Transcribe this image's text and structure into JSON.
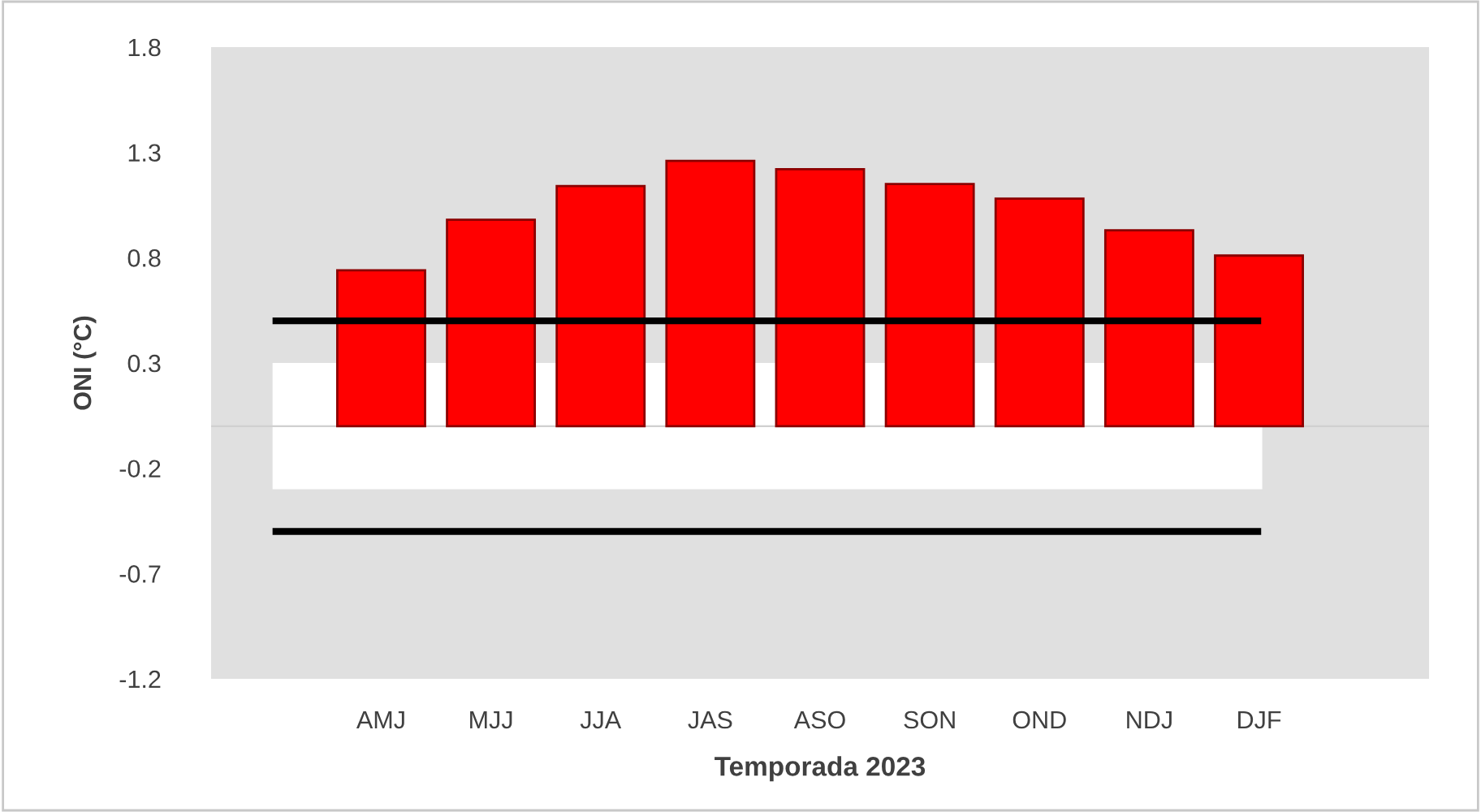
{
  "chart_data": {
    "type": "bar",
    "xlabel": "Temporada 2023",
    "ylabel": "ONI (°C)",
    "categories": [
      "AMJ",
      "MJJ",
      "JJA",
      "JAS",
      "ASO",
      "SON",
      "OND",
      "NDJ",
      "DJF"
    ],
    "values": [
      0.74,
      0.98,
      1.14,
      1.26,
      1.22,
      1.15,
      1.08,
      0.93,
      0.81
    ],
    "color": "#ff0000",
    "ylim": [
      -1.2,
      1.8
    ],
    "yticks": [
      -1.2,
      -0.7,
      -0.2,
      0.3,
      0.8,
      1.3,
      1.8
    ],
    "ref_lines": [
      {
        "axis": "y",
        "value": 0.5,
        "color": "#000000"
      },
      {
        "axis": "y",
        "value": -0.5,
        "color": "#000000"
      }
    ],
    "bands": [
      {
        "axis": "y",
        "from": -0.3,
        "to": 0.3,
        "color": "#ffffff"
      }
    ],
    "grid": false,
    "legend": false
  }
}
